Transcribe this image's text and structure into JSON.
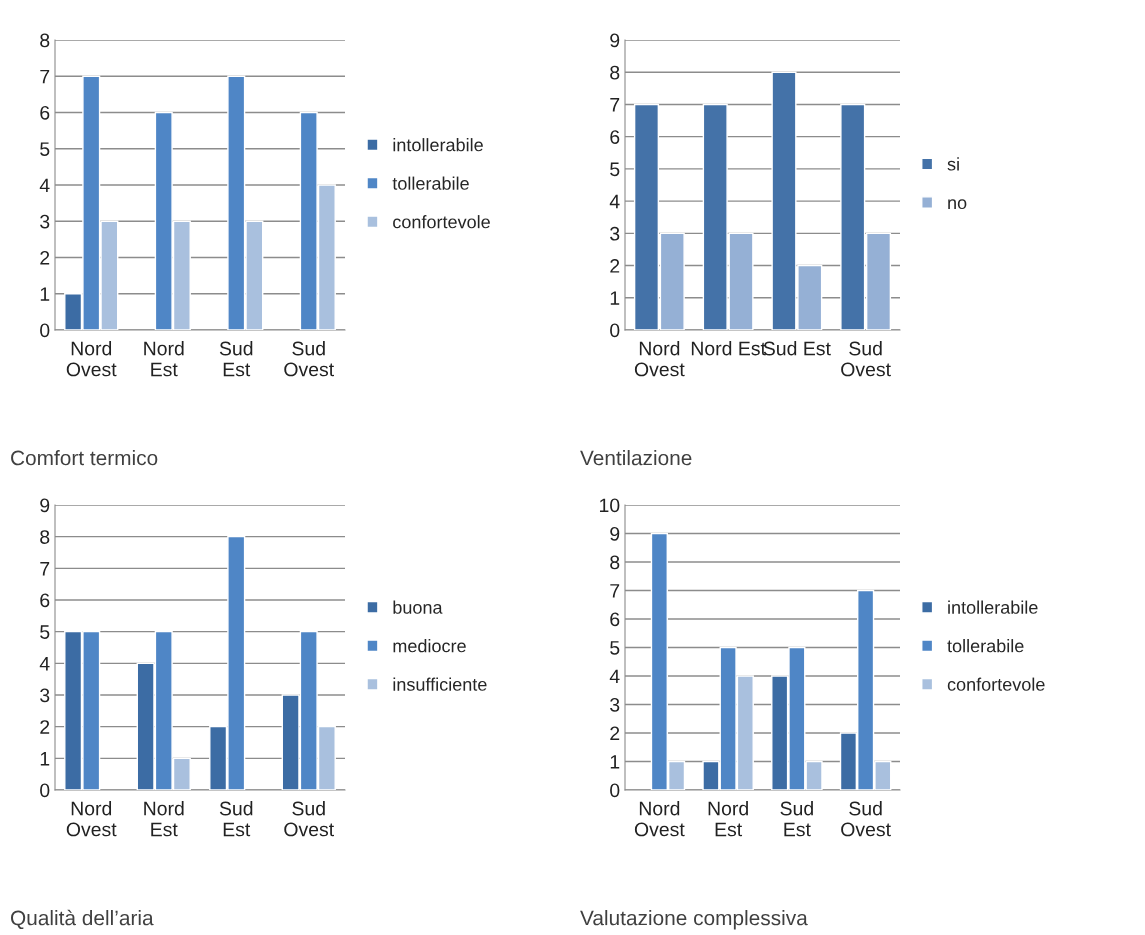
{
  "chart_data": [
    {
      "type": "bar",
      "title": "Comfort termico",
      "categories": [
        "Nord\nOvest",
        "Nord\nEst",
        "Sud\nEst",
        "Sud\nOvest"
      ],
      "series": [
        {
          "name": "intollerabile",
          "color": "#3c6ca4",
          "values": [
            1,
            null,
            null,
            null
          ]
        },
        {
          "name": "tollerabile",
          "color": "#4f86c6",
          "values": [
            7,
            6,
            7,
            6
          ]
        },
        {
          "name": "confortevole",
          "color": "#a9c0de",
          "values": [
            3,
            3,
            3,
            4
          ]
        }
      ],
      "ylim": [
        0,
        8
      ],
      "yticks": [
        0,
        1,
        2,
        3,
        4,
        5,
        6,
        7,
        8
      ],
      "grid": "y",
      "legend": "right"
    },
    {
      "type": "bar",
      "title": "Ventilazione",
      "categories": [
        "Nord\nOvest",
        "Nord Est",
        "Sud Est",
        "Sud\nOvest"
      ],
      "series": [
        {
          "name": "si",
          "color": "#4472a8",
          "values": [
            7,
            7,
            8,
            7
          ]
        },
        {
          "name": "no",
          "color": "#95b0d5",
          "values": [
            3,
            3,
            2,
            3
          ]
        }
      ],
      "ylim": [
        0,
        9
      ],
      "yticks": [
        0,
        1,
        2,
        3,
        4,
        5,
        6,
        7,
        8,
        9
      ],
      "grid": "y",
      "legend": "right"
    },
    {
      "type": "bar",
      "title": "Qualità dell’aria",
      "categories": [
        "Nord\nOvest",
        "Nord\nEst",
        "Sud\nEst",
        "Sud\nOvest"
      ],
      "series": [
        {
          "name": "buona",
          "color": "#3c6ca4",
          "values": [
            5,
            4,
            2,
            3
          ]
        },
        {
          "name": "mediocre",
          "color": "#4f86c6",
          "values": [
            5,
            5,
            8,
            5
          ]
        },
        {
          "name": "insufficiente",
          "color": "#a9c0de",
          "values": [
            null,
            1,
            null,
            2
          ]
        }
      ],
      "ylim": [
        0,
        9
      ],
      "yticks": [
        0,
        1,
        2,
        3,
        4,
        5,
        6,
        7,
        8,
        9
      ],
      "grid": "y",
      "legend": "right"
    },
    {
      "type": "bar",
      "title": "Valutazione complessiva",
      "categories": [
        "Nord\nOvest",
        "Nord\nEst",
        "Sud\nEst",
        "Sud\nOvest"
      ],
      "series": [
        {
          "name": "intollerabile",
          "color": "#3c6ca4",
          "values": [
            null,
            1,
            4,
            2
          ]
        },
        {
          "name": "tollerabile",
          "color": "#4f86c6",
          "values": [
            9,
            5,
            5,
            7
          ]
        },
        {
          "name": "confortevole",
          "color": "#a9c0de",
          "values": [
            1,
            4,
            1,
            1
          ]
        }
      ],
      "ylim": [
        0,
        10
      ],
      "yticks": [
        0,
        1,
        2,
        3,
        4,
        5,
        6,
        7,
        8,
        9,
        10
      ],
      "grid": "y",
      "legend": "right"
    }
  ]
}
